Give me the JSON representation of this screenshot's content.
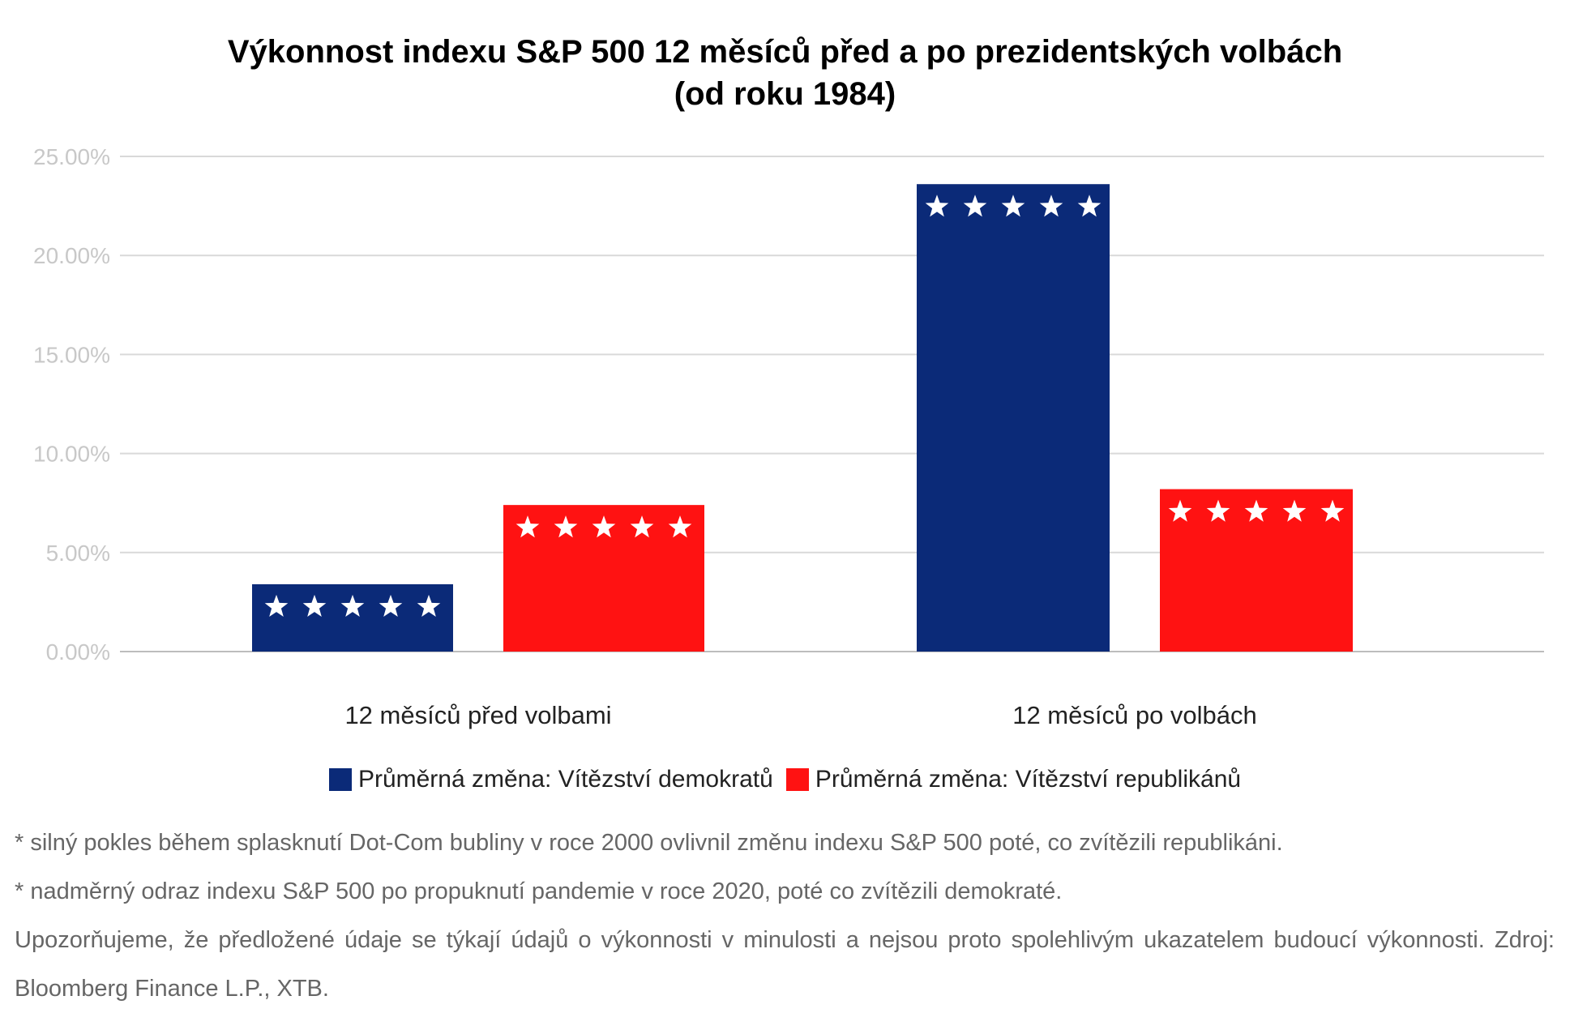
{
  "chart_data": {
    "type": "bar",
    "title": [
      "Výkonnost indexu S&P 500 12 měsíců před a po prezidentských volbách",
      "(od roku 1984)"
    ],
    "categories": [
      "12 měsíců před volbami",
      "12 měsíců po volbách"
    ],
    "series": [
      {
        "name": "Průměrná změna: Vítězství demokratů",
        "color": "#0b2a78",
        "values": [
          3.4,
          23.6
        ]
      },
      {
        "name": "Průměrná změna: Vítězství republikánů",
        "color": "#ff1212",
        "values": [
          7.4,
          8.2
        ]
      }
    ],
    "yticks": [
      "0.00%",
      "5.00%",
      "10.00%",
      "15.00%",
      "20.00%",
      "25.00%"
    ],
    "ylim": [
      0,
      25
    ],
    "grid": true,
    "legend_position": "bottom",
    "bar_decoration": "five white stars"
  },
  "notes": [
    "* silný pokles během splasknutí Dot-Com bubliny v roce 2000 ovlivnil změnu indexu S&P 500 poté, co zvítězili republikáni.",
    "* nadměrný odraz indexu S&P 500 po propuknutí pandemie v roce 2020, poté co zvítězili demokraté.",
    "Upozorňujeme, že předložené údaje se týkají údajů o výkonnosti v minulosti a nejsou proto spolehlivým ukazatelem budoucí výkonnosti. Zdroj: Bloomberg Finance L.P., XTB."
  ]
}
